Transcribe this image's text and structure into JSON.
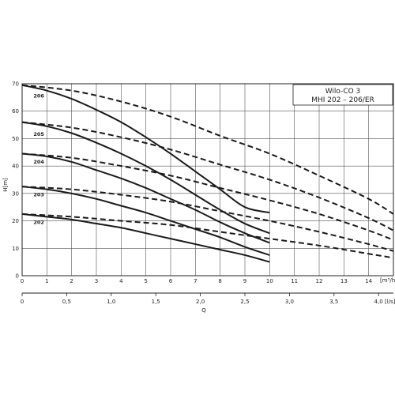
{
  "chart_data": {
    "type": "line",
    "title_line1": "Wilo-CO 3",
    "title_line2": "MHI 202 – 206/ER",
    "ylabel": "H[m]",
    "xlabel": "Q",
    "x_unit_top": "[m³/h]",
    "x_unit_bottom": "[l/s]",
    "xlim": [
      0,
      15
    ],
    "ylim": [
      0,
      70
    ],
    "x_ticks": [
      0,
      1,
      2,
      3,
      4,
      5,
      6,
      7,
      8,
      9,
      10,
      11,
      12,
      13,
      14
    ],
    "y_ticks": [
      0,
      10,
      20,
      30,
      40,
      50,
      60,
      70
    ],
    "ls_ticks": [
      {
        "value": 0,
        "label": "0"
      },
      {
        "value": 0.5,
        "label": "0,5"
      },
      {
        "value": 1.0,
        "label": "1,0"
      },
      {
        "value": 1.5,
        "label": "1,5"
      },
      {
        "value": 2.0,
        "label": "2,0"
      },
      {
        "value": 2.5,
        "label": "2,5"
      },
      {
        "value": 3.0,
        "label": "3,0"
      },
      {
        "value": 3.5,
        "label": "3,5"
      },
      {
        "value": 4.0,
        "label": "4,0"
      }
    ],
    "grid": true,
    "series": [
      {
        "name": "206",
        "label_at": [
          0.3,
          65.5
        ],
        "solid": [
          [
            0,
            69.5
          ],
          [
            1,
            67.5
          ],
          [
            2,
            64.5
          ],
          [
            3,
            60.5
          ],
          [
            4,
            56
          ],
          [
            5,
            50.5
          ],
          [
            6,
            44.5
          ],
          [
            7,
            38
          ],
          [
            8,
            31.5
          ],
          [
            9,
            25
          ],
          [
            10,
            23
          ]
        ],
        "dashed": [
          [
            0,
            69.5
          ],
          [
            2,
            67.5
          ],
          [
            4,
            63.5
          ],
          [
            6,
            58
          ],
          [
            8,
            51
          ],
          [
            10,
            44.5
          ],
          [
            12,
            36.5
          ],
          [
            14,
            28
          ],
          [
            15,
            22.5
          ]
        ]
      },
      {
        "name": "205",
        "label_at": [
          0.3,
          51.5
        ],
        "solid": [
          [
            0,
            56
          ],
          [
            1,
            54.5
          ],
          [
            2,
            52
          ],
          [
            3,
            48.5
          ],
          [
            4,
            44.5
          ],
          [
            5,
            40
          ],
          [
            6,
            35
          ],
          [
            7,
            29.5
          ],
          [
            8,
            24
          ],
          [
            9,
            19
          ],
          [
            10,
            15.5
          ]
        ],
        "dashed": [
          [
            0,
            56
          ],
          [
            2,
            54
          ],
          [
            4,
            50.5
          ],
          [
            6,
            46
          ],
          [
            8,
            40.5
          ],
          [
            10,
            35
          ],
          [
            12,
            28.5
          ],
          [
            14,
            21
          ],
          [
            15,
            16.5
          ]
        ]
      },
      {
        "name": "204",
        "label_at": [
          0.3,
          41.5
        ],
        "solid": [
          [
            0,
            44.5
          ],
          [
            1,
            43.5
          ],
          [
            2,
            41.5
          ],
          [
            3,
            38.5
          ],
          [
            4,
            35.5
          ],
          [
            5,
            32
          ],
          [
            6,
            28
          ],
          [
            7,
            24
          ],
          [
            8,
            19.5
          ],
          [
            9,
            15.5
          ],
          [
            10,
            12
          ]
        ],
        "dashed": [
          [
            0,
            44.5
          ],
          [
            2,
            43
          ],
          [
            4,
            40
          ],
          [
            6,
            36.5
          ],
          [
            8,
            32
          ],
          [
            10,
            27.5
          ],
          [
            12,
            22.5
          ],
          [
            14,
            16.5
          ],
          [
            15,
            13
          ]
        ]
      },
      {
        "name": "203",
        "label_at": [
          0.3,
          29.5
        ],
        "solid": [
          [
            0,
            32.5
          ],
          [
            1,
            31.5
          ],
          [
            2,
            30
          ],
          [
            3,
            28
          ],
          [
            4,
            25.5
          ],
          [
            5,
            23
          ],
          [
            6,
            20
          ],
          [
            7,
            17
          ],
          [
            8,
            14
          ],
          [
            9,
            10.5
          ],
          [
            10,
            7.5
          ]
        ],
        "dashed": [
          [
            0,
            32.5
          ],
          [
            2,
            31.5
          ],
          [
            4,
            29.5
          ],
          [
            6,
            27
          ],
          [
            8,
            23.5
          ],
          [
            10,
            20
          ],
          [
            12,
            16
          ],
          [
            14,
            11.5
          ],
          [
            15,
            9
          ]
        ]
      },
      {
        "name": "202",
        "label_at": [
          0.3,
          19.5
        ],
        "solid": [
          [
            0,
            22.5
          ],
          [
            1,
            21.5
          ],
          [
            2,
            20.5
          ],
          [
            3,
            19
          ],
          [
            4,
            17.5
          ],
          [
            5,
            15.5
          ],
          [
            6,
            13.5
          ],
          [
            7,
            11.5
          ],
          [
            8,
            9.5
          ],
          [
            9,
            7.5
          ],
          [
            10,
            5
          ]
        ],
        "dashed": [
          [
            0,
            22.5
          ],
          [
            2,
            21.5
          ],
          [
            4,
            20
          ],
          [
            6,
            18.5
          ],
          [
            8,
            16
          ],
          [
            10,
            13.5
          ],
          [
            12,
            11
          ],
          [
            14,
            8
          ],
          [
            15,
            6.5
          ]
        ]
      }
    ]
  }
}
